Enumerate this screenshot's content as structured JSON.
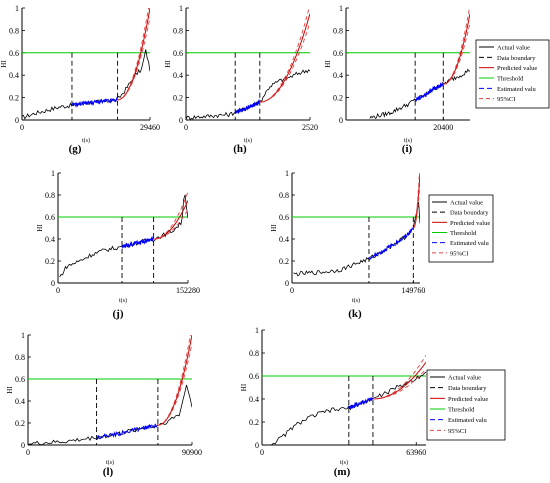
{
  "figure": {
    "panel_labels": [
      "(g)",
      "(h)",
      "(i)",
      "(j)",
      "(k)",
      "(l)",
      "(m)"
    ]
  },
  "colors": {
    "actual": "#000000",
    "boundary": "#000000",
    "predicted": "#cc0000",
    "threshold": "#00cc00",
    "estimated": "#0000ff",
    "ci": "#e04040"
  },
  "chart_data": [
    {
      "panel": "(g)",
      "type": "line",
      "ylabel": "HI",
      "xlabel": "t(s)",
      "yticks": [
        "0",
        "0.2",
        "0.4",
        "0.6",
        "0.8",
        "1"
      ],
      "xticks": [
        "0",
        "29460"
      ],
      "xmax": 29460,
      "ylim": [
        0,
        1
      ],
      "threshold": 0.6,
      "boundaries": [
        11500,
        22000
      ],
      "actual_points": [
        [
          0,
          0.02
        ],
        [
          3000,
          0.06
        ],
        [
          6000,
          0.09
        ],
        [
          9000,
          0.12
        ],
        [
          11500,
          0.13
        ],
        [
          14000,
          0.15
        ],
        [
          17000,
          0.16
        ],
        [
          20000,
          0.17
        ],
        [
          22000,
          0.18
        ],
        [
          24000,
          0.28
        ],
        [
          26000,
          0.4
        ],
        [
          27500,
          0.45
        ],
        [
          28500,
          0.62
        ],
        [
          29460,
          0.45
        ]
      ],
      "estimated_range": [
        11500,
        22000
      ],
      "predicted_end": 1.0,
      "ci_spread": 0.08
    },
    {
      "panel": "(h)",
      "type": "line",
      "ylabel": "HI",
      "xlabel": "t(s)",
      "yticks": [
        "0",
        "0.2",
        "0.4",
        "0.6",
        "0.8",
        "1"
      ],
      "xticks": [
        "0",
        "2520"
      ],
      "xmax": 2520,
      "ylim": [
        0,
        1
      ],
      "threshold": 0.6,
      "boundaries": [
        1000,
        1500
      ],
      "actual_points": [
        [
          0,
          0.02
        ],
        [
          300,
          0.03
        ],
        [
          600,
          0.04
        ],
        [
          900,
          0.05
        ],
        [
          1000,
          0.07
        ],
        [
          1200,
          0.1
        ],
        [
          1400,
          0.14
        ],
        [
          1500,
          0.16
        ],
        [
          1700,
          0.3
        ],
        [
          1900,
          0.35
        ],
        [
          2100,
          0.38
        ],
        [
          2300,
          0.42
        ],
        [
          2520,
          0.45
        ]
      ],
      "estimated_range": [
        1000,
        1500
      ],
      "predicted_end": 0.95,
      "ci_spread": 0.08
    },
    {
      "panel": "(i)",
      "type": "line",
      "ylabel": "HI",
      "xlabel": "t(s)",
      "yticks": [
        "0",
        "0.2",
        "0.4",
        "0.6",
        "0.8",
        "1"
      ],
      "xticks": [
        "20400"
      ],
      "xmax": 26000,
      "ylim": [
        0,
        1
      ],
      "threshold": 0.6,
      "boundaries": [
        14500,
        20400
      ],
      "actual_points": [
        [
          5000,
          0.02
        ],
        [
          7000,
          0.04
        ],
        [
          9000,
          0.06
        ],
        [
          11000,
          0.1
        ],
        [
          13000,
          0.14
        ],
        [
          14500,
          0.18
        ],
        [
          16500,
          0.22
        ],
        [
          18500,
          0.28
        ],
        [
          20400,
          0.32
        ],
        [
          22000,
          0.36
        ],
        [
          24000,
          0.4
        ],
        [
          26000,
          0.45
        ]
      ],
      "estimated_range": [
        14500,
        20400
      ],
      "predicted_end": 0.95,
      "ci_spread": 0.08
    },
    {
      "panel": "(j)",
      "type": "line",
      "ylabel": "HI",
      "xlabel": "t(s)",
      "yticks": [
        "0",
        "0.2",
        "0.4",
        "0.6",
        "0.8",
        "1"
      ],
      "xticks": [
        "0",
        "152280"
      ],
      "xmax": 152280,
      "ylim": [
        0,
        1
      ],
      "threshold": 0.6,
      "boundaries": [
        75000,
        112000
      ],
      "actual_points": [
        [
          2000,
          0.05
        ],
        [
          10000,
          0.15
        ],
        [
          25000,
          0.2
        ],
        [
          40000,
          0.26
        ],
        [
          55000,
          0.3
        ],
        [
          75000,
          0.33
        ],
        [
          90000,
          0.36
        ],
        [
          112000,
          0.4
        ],
        [
          125000,
          0.44
        ],
        [
          135000,
          0.48
        ],
        [
          145000,
          0.55
        ],
        [
          148000,
          0.85
        ],
        [
          152280,
          0.6
        ]
      ],
      "estimated_range": [
        75000,
        112000
      ],
      "predicted_end": 0.75,
      "ci_spread": 0.08
    },
    {
      "panel": "(k)",
      "type": "line",
      "ylabel": "HI",
      "xlabel": "t(s)",
      "yticks": [
        "0",
        "0.2",
        "0.4",
        "0.6",
        "0.8",
        "1"
      ],
      "xticks": [
        "0",
        "149760"
      ],
      "xmax": 158000,
      "ylim": [
        0,
        1
      ],
      "threshold": 0.6,
      "boundaries": [
        95000,
        149760
      ],
      "actual_points": [
        [
          2000,
          0.08
        ],
        [
          20000,
          0.09
        ],
        [
          40000,
          0.1
        ],
        [
          60000,
          0.12
        ],
        [
          80000,
          0.18
        ],
        [
          95000,
          0.22
        ],
        [
          110000,
          0.28
        ],
        [
          125000,
          0.35
        ],
        [
          140000,
          0.42
        ],
        [
          149760,
          0.5
        ],
        [
          153000,
          0.6
        ],
        [
          156000,
          0.75
        ],
        [
          158000,
          0.55
        ]
      ],
      "estimated_range": [
        95000,
        149760
      ],
      "predicted_end": 1.0,
      "ci_spread": 0.1
    },
    {
      "panel": "(l)",
      "type": "line",
      "ylabel": "HI",
      "xlabel": "t(s)",
      "yticks": [
        "0",
        "0.2",
        "0.4",
        "0.6",
        "0.8",
        "1"
      ],
      "xticks": [
        "0",
        "90900"
      ],
      "xmax": 90900,
      "ylim": [
        0,
        1
      ],
      "threshold": 0.6,
      "boundaries": [
        38000,
        72000
      ],
      "actual_points": [
        [
          0,
          0.01
        ],
        [
          10000,
          0.02
        ],
        [
          20000,
          0.03
        ],
        [
          30000,
          0.05
        ],
        [
          38000,
          0.07
        ],
        [
          50000,
          0.1
        ],
        [
          60000,
          0.14
        ],
        [
          72000,
          0.18
        ],
        [
          78000,
          0.22
        ],
        [
          84000,
          0.28
        ],
        [
          88000,
          0.55
        ],
        [
          90900,
          0.35
        ]
      ],
      "estimated_range": [
        38000,
        72000
      ],
      "predicted_end": 1.0,
      "ci_spread": 0.08
    },
    {
      "panel": "(m)",
      "type": "line",
      "ylabel": "HI",
      "xlabel": "t(s)",
      "yticks": [
        "0",
        "0.2",
        "0.4",
        "0.6",
        "0.8",
        "1"
      ],
      "xticks": [
        "0",
        "63960"
      ],
      "xmax": 68000,
      "ylim": [
        0,
        1
      ],
      "threshold": 0.6,
      "boundaries": [
        36000,
        46000
      ],
      "actual_points": [
        [
          4000,
          0.01
        ],
        [
          8000,
          0.06
        ],
        [
          12000,
          0.14
        ],
        [
          16000,
          0.2
        ],
        [
          22000,
          0.26
        ],
        [
          28000,
          0.3
        ],
        [
          36000,
          0.32
        ],
        [
          40000,
          0.36
        ],
        [
          46000,
          0.4
        ],
        [
          52000,
          0.46
        ],
        [
          58000,
          0.52
        ],
        [
          63960,
          0.58
        ],
        [
          68000,
          0.64
        ]
      ],
      "estimated_range": [
        36000,
        46000
      ],
      "predicted_end": 0.72,
      "ci_spread": 0.06
    }
  ],
  "legend": {
    "entries": [
      "Actual value",
      "Data boundary",
      "Predicted value",
      "Threshold",
      "Estimated valu",
      "95%CI"
    ]
  }
}
